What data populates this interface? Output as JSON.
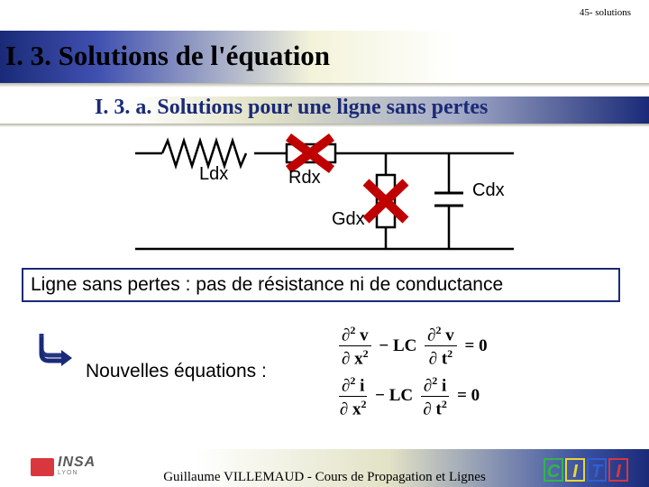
{
  "corner": "45- solutions",
  "title": "I. 3. Solutions de l'équation",
  "subtitle": "I. 3. a. Solutions pour une ligne sans pertes",
  "circuit": {
    "labels": {
      "L": "Ldx",
      "R": "Rdx",
      "G": "Gdx",
      "C": "Cdx"
    },
    "line_color": "#000000",
    "label_font": "Arial",
    "label_fontsize": 20,
    "cross_color": "#c00000",
    "cross_stroke": 10
  },
  "caption": "Ligne sans pertes : pas de résistance ni de conductance",
  "newEqLabel": "Nouvelles équations :",
  "equations": [
    {
      "var": "v",
      "coeff": "LC"
    },
    {
      "var": "i",
      "coeff": "LC"
    }
  ],
  "footer": "Guillaume VILLEMAUD - Cours de Propagation et Lignes",
  "logos": {
    "insa": {
      "text": "INSA",
      "sub": "LYON",
      "red": "#d9363e"
    },
    "citi": {
      "letters": [
        {
          "ch": "C",
          "color": "#2fb64a"
        },
        {
          "ch": "I",
          "color": "#e8d633"
        },
        {
          "ch": "T",
          "color": "#2f5fd4"
        },
        {
          "ch": "I",
          "color": "#d9363e"
        }
      ]
    }
  },
  "colors": {
    "navy": "#1a2a78",
    "border": "#1a2a78"
  }
}
